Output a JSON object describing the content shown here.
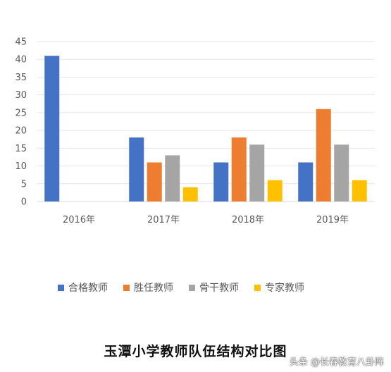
{
  "chart_data": {
    "type": "bar",
    "categories": [
      "2016年",
      "2017年",
      "2018年",
      "2019年"
    ],
    "series": [
      {
        "name": "合格教师",
        "color": "#4472c4",
        "values": [
          41,
          18,
          11,
          11
        ]
      },
      {
        "name": "胜任教师",
        "color": "#ed7d31",
        "values": [
          0,
          11,
          18,
          26
        ]
      },
      {
        "name": "骨干教师",
        "color": "#a5a5a5",
        "values": [
          0,
          13,
          16,
          16
        ]
      },
      {
        "name": "专家教师",
        "color": "#ffc000",
        "values": [
          0,
          4,
          6,
          6
        ]
      }
    ],
    "yticks": [
      "0",
      "5",
      "10",
      "15",
      "20",
      "25",
      "30",
      "35",
      "40",
      "45"
    ],
    "ylim": [
      0,
      45
    ],
    "grid": true,
    "legend_position": "bottom",
    "title": "玉潭小学教师队伍结构对比图"
  },
  "watermark": "头条 @长春教育八卦阵"
}
